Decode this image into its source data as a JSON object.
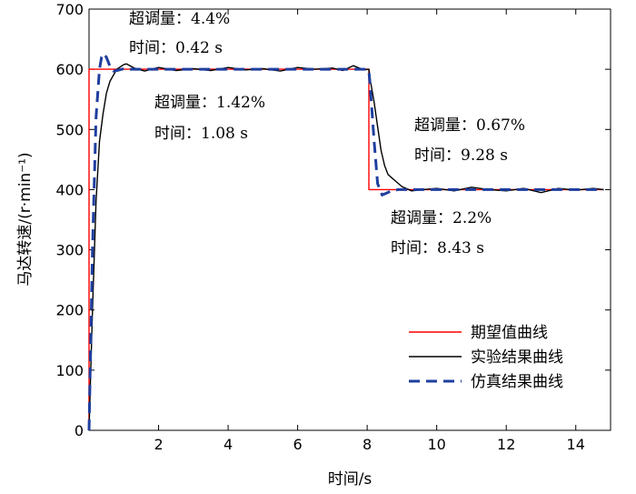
{
  "chart_data": {
    "type": "line",
    "xlabel": "时间/s",
    "ylabel": "马达转速/(r·min⁻¹)",
    "xlim": [
      0,
      15
    ],
    "ylim": [
      0,
      700
    ],
    "xticks": [
      2,
      4,
      6,
      8,
      10,
      12,
      14
    ],
    "yticks": [
      0,
      100,
      200,
      300,
      400,
      500,
      600,
      700
    ],
    "grid": false,
    "legend_position": "bottom-right",
    "series": [
      {
        "name": "期望值曲线",
        "color": "#ff0000",
        "style": "solid",
        "x": [
          0,
          0,
          8.05,
          8.05,
          14.8
        ],
        "y": [
          0,
          600,
          600,
          400,
          400
        ]
      },
      {
        "name": "实验结果曲线",
        "color": "#000000",
        "style": "solid",
        "x": [
          0,
          0.1,
          0.2,
          0.3,
          0.4,
          0.5,
          0.6,
          0.8,
          1.0,
          1.08,
          1.3,
          1.6,
          2.0,
          2.5,
          3.0,
          3.5,
          4.0,
          4.5,
          5.0,
          5.5,
          6.0,
          6.5,
          7.0,
          7.3,
          7.6,
          7.9,
          8.05,
          8.1,
          8.2,
          8.3,
          8.4,
          8.5,
          8.6,
          8.7,
          8.8,
          9.0,
          9.28,
          9.6,
          10.0,
          10.5,
          11.0,
          11.5,
          12.0,
          12.5,
          13.0,
          13.5,
          14.0,
          14.5,
          14.8
        ],
        "y": [
          0,
          200,
          380,
          480,
          525,
          560,
          580,
          600,
          608,
          609,
          602,
          597,
          603,
          598,
          601,
          598,
          603,
          599,
          601,
          597,
          603,
          600,
          602,
          598,
          606,
          599,
          600,
          578,
          545,
          505,
          465,
          440,
          425,
          420,
          415,
          405,
          398,
          400,
          402,
          398,
          404,
          400,
          398,
          402,
          395,
          402,
          399,
          402,
          400
        ]
      },
      {
        "name": "仿真结果曲线",
        "color": "#1f3f9f",
        "style": "dashed",
        "x": [
          0,
          0.1,
          0.2,
          0.3,
          0.36,
          0.42,
          0.5,
          0.6,
          0.7,
          0.8,
          1.0,
          1.2,
          1.5,
          2.0,
          3.0,
          4.0,
          5.0,
          6.0,
          7.0,
          8.0,
          8.05,
          8.1,
          8.2,
          8.3,
          8.43,
          8.55,
          8.7,
          8.9,
          9.2,
          10.0,
          11.0,
          12.0,
          13.0,
          14.0,
          14.8
        ],
        "y": [
          0,
          300,
          520,
          600,
          620,
          626,
          620,
          605,
          597,
          598,
          601,
          600,
          600,
          600,
          600,
          600,
          600,
          600,
          600,
          600,
          598,
          560,
          480,
          410,
          391,
          394,
          398,
          400,
          400,
          400,
          400,
          400,
          400,
          400,
          400
        ]
      }
    ],
    "annotations": [
      {
        "line1": "超调量：4.4%",
        "line2": "时间：0.42 s"
      },
      {
        "line1": "超调量：1.42%",
        "line2": "时间：1.08 s"
      },
      {
        "line1": "超调量：0.67%",
        "line2": "时间：9.28 s"
      },
      {
        "line1": "超调量：2.2%",
        "line2": "时间：8.43 s"
      }
    ]
  }
}
